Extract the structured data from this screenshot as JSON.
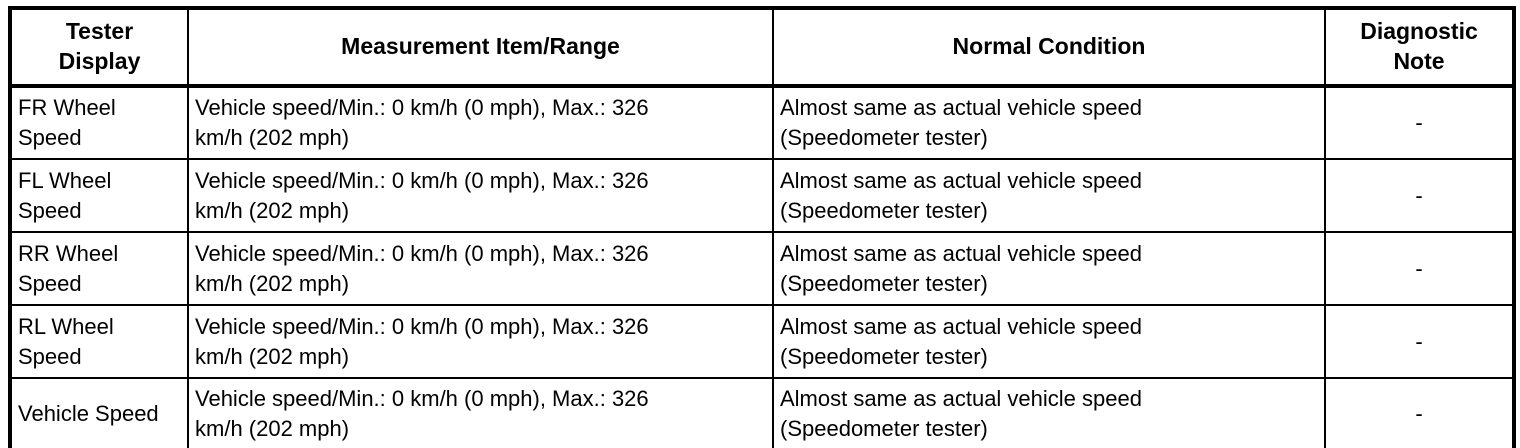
{
  "table": {
    "columns": {
      "tester_display": "Tester\nDisplay",
      "measurement": "Measurement Item/Range",
      "normal_condition": "Normal Condition",
      "diagnostic_note": "Diagnostic\nNote"
    },
    "rows": [
      {
        "tester_display": "FR Wheel\nSpeed",
        "measurement": "Vehicle speed/Min.: 0 km/h (0 mph), Max.: 326\nkm/h (202 mph)",
        "normal_condition": "Almost same as actual vehicle speed\n(Speedometer tester)",
        "diagnostic_note": "-"
      },
      {
        "tester_display": "FL Wheel\nSpeed",
        "measurement": "Vehicle speed/Min.: 0 km/h (0 mph), Max.: 326\nkm/h (202 mph)",
        "normal_condition": "Almost same as actual vehicle speed\n(Speedometer tester)",
        "diagnostic_note": "-"
      },
      {
        "tester_display": "RR Wheel\nSpeed",
        "measurement": "Vehicle speed/Min.: 0 km/h (0 mph), Max.: 326\nkm/h (202 mph)",
        "normal_condition": "Almost same as actual vehicle speed\n(Speedometer tester)",
        "diagnostic_note": "-"
      },
      {
        "tester_display": "RL Wheel\nSpeed",
        "measurement": "Vehicle speed/Min.: 0 km/h (0 mph), Max.: 326\nkm/h (202 mph)",
        "normal_condition": "Almost same as actual vehicle speed\n(Speedometer tester)",
        "diagnostic_note": "-"
      },
      {
        "tester_display": "Vehicle Speed",
        "measurement": "Vehicle speed/Min.: 0 km/h (0 mph), Max.: 326\nkm/h (202 mph)",
        "normal_condition": "Almost same as actual vehicle speed\n(Speedometer tester)",
        "diagnostic_note": "-"
      }
    ]
  }
}
